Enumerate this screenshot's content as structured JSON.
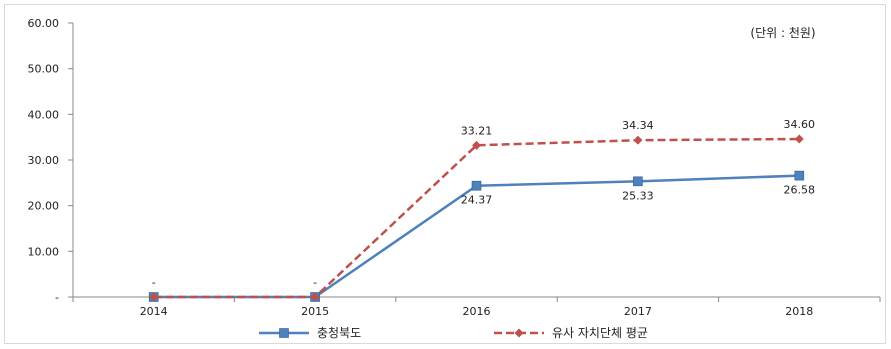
{
  "chart_data": {
    "type": "line",
    "categories": [
      "2014",
      "2015",
      "2016",
      "2017",
      "2018"
    ],
    "y_tick_labels": [
      "-",
      "10.00",
      "20.00",
      "30.00",
      "40.00",
      "50.00",
      "60.00"
    ],
    "ylim": [
      0,
      60
    ],
    "unit_note": "(단위 : 천원)",
    "legend_position": "bottom",
    "grid": false,
    "series": [
      {
        "name": "충청북도",
        "values": [
          0,
          0,
          24.37,
          25.33,
          26.58
        ],
        "labels": [
          "",
          "",
          "24.37",
          "25.33",
          "26.58"
        ],
        "color": "#4F81BD",
        "style": "solid",
        "marker": "square"
      },
      {
        "name": "유사 자치단체 평균",
        "values": [
          0,
          0,
          33.21,
          34.34,
          34.6
        ],
        "labels": [
          "-",
          "-",
          "33.21",
          "34.34",
          "34.60"
        ],
        "color": "#C0504D",
        "style": "dashed",
        "marker": "diamond"
      }
    ]
  }
}
